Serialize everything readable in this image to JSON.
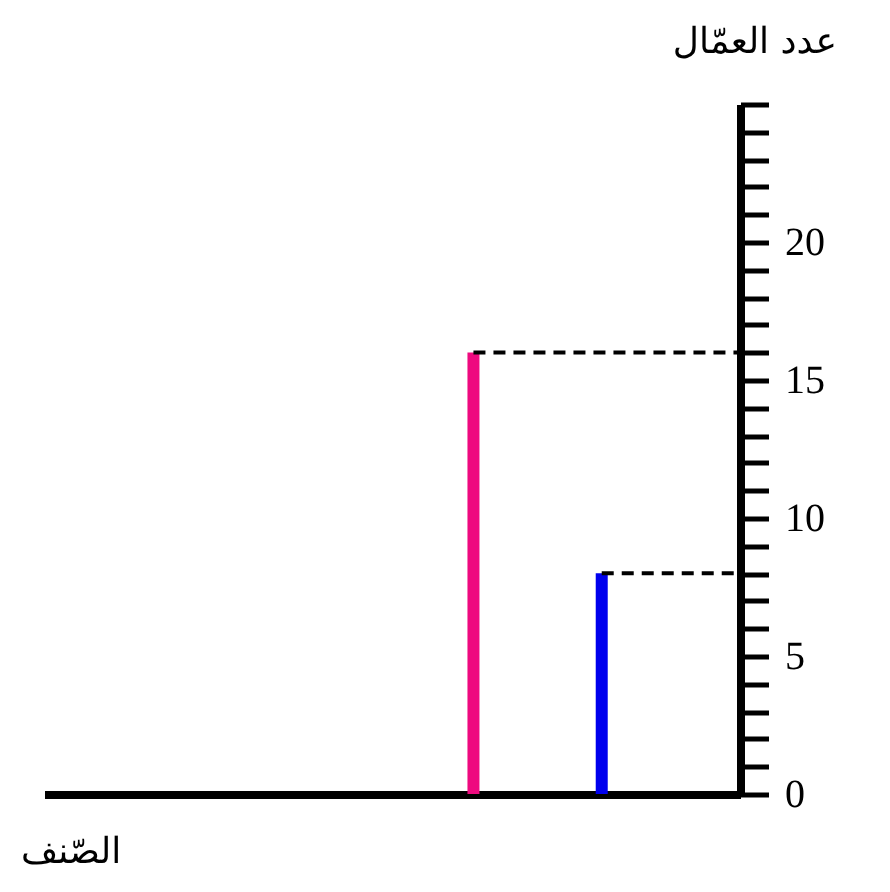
{
  "chart_data": {
    "type": "bar",
    "xlabel": "الصّنف",
    "ylabel": "عدد العمّال",
    "categories": [
      null,
      null
    ],
    "values": [
      16,
      8
    ],
    "colors": [
      "#ee0a7f",
      "#0000ee"
    ],
    "ylim": [
      0,
      25
    ],
    "yticks": [
      0,
      {
        "value": 1,
        "label": null
      },
      {
        "value": 2,
        "label": null
      },
      {
        "value": 3,
        "label": null
      },
      {
        "value": 4,
        "label": null
      },
      5,
      {
        "value": 6,
        "label": null
      },
      {
        "value": 7,
        "label": null
      },
      {
        "value": 8,
        "label": null
      },
      {
        "value": 9,
        "label": null
      },
      10,
      {
        "value": 11,
        "label": null
      },
      {
        "value": 12,
        "label": null
      },
      {
        "value": 13,
        "label": null
      },
      {
        "value": 14,
        "label": null
      },
      15,
      {
        "value": 16,
        "label": null
      },
      {
        "value": 17,
        "label": null
      },
      {
        "value": 18,
        "label": null
      },
      {
        "value": 19,
        "label": null
      },
      20,
      {
        "value": 21,
        "label": null
      },
      {
        "value": 22,
        "label": null
      },
      {
        "value": 23,
        "label": null
      },
      {
        "value": 24,
        "label": null
      },
      {
        "value": 25,
        "label": null
      }
    ],
    "ref_lines": [
      {
        "axis": "y",
        "value": 16,
        "color": "#000000",
        "line_style": "dashed"
      },
      {
        "axis": "y",
        "value": 8,
        "color": "#000000",
        "line_style": "dashed"
      }
    ],
    "grid": false,
    "legend": false
  }
}
